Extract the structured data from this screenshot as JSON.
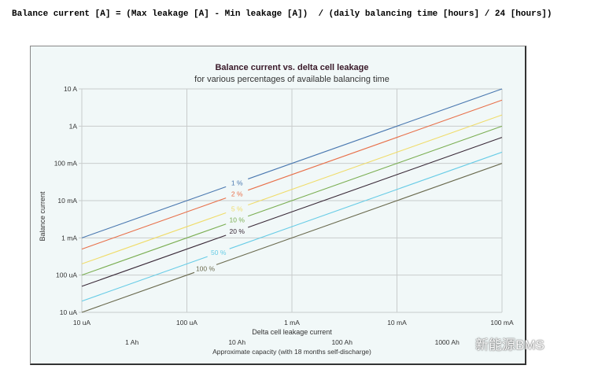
{
  "formula": "Balance current [A] = (Max leakage [A] - Min leakage [A])  / (daily balancing time [hours] / 24 [hours])",
  "watermark": "新能源BMS",
  "chart_data": {
    "type": "line",
    "title": "Balance current vs. delta cell leakage",
    "subtitle": "for various percentages of available balancing time",
    "xlabel": "Delta cell leakage current",
    "ylabel": "Balance current",
    "x2label": "Approximate capacity (with 18 months self-discharge)",
    "xscale": "log",
    "yscale": "log",
    "xlim_A": [
      1e-05,
      0.1
    ],
    "ylim_A": [
      1e-05,
      10
    ],
    "grid": true,
    "xticks": [
      {
        "v": 1e-05,
        "label": "10 uA"
      },
      {
        "v": 0.0001,
        "label": "100 uA"
      },
      {
        "v": 0.001,
        "label": "1 mA"
      },
      {
        "v": 0.01,
        "label": "10 mA"
      },
      {
        "v": 0.1,
        "label": "100 mA"
      }
    ],
    "yticks": [
      {
        "v": 10,
        "label": "10 A"
      },
      {
        "v": 1,
        "label": "1A"
      },
      {
        "v": 0.1,
        "label": "100 mA"
      },
      {
        "v": 0.01,
        "label": "10 mA"
      },
      {
        "v": 0.001,
        "label": "1 mA"
      },
      {
        "v": 0.0001,
        "label": "100 uA"
      },
      {
        "v": 1e-05,
        "label": "10 uA"
      }
    ],
    "x2ticks": [
      {
        "v": 3e-05,
        "label": "1 Ah"
      },
      {
        "v": 0.0003,
        "label": "10 Ah"
      },
      {
        "v": 0.003,
        "label": "100 Ah"
      },
      {
        "v": 0.03,
        "label": "1000 Ah"
      }
    ],
    "x": [
      1e-05,
      0.1
    ],
    "series": [
      {
        "name": "1 %",
        "values": [
          0.001,
          10
        ],
        "color": "#4a78b0",
        "label_at": 0.0003
      },
      {
        "name": "2 %",
        "values": [
          0.0005,
          5
        ],
        "color": "#e8704a",
        "label_at": 0.0003
      },
      {
        "name": "5 %",
        "values": [
          0.0002,
          2
        ],
        "color": "#f0dc6a",
        "label_at": 0.0003
      },
      {
        "name": "10 %",
        "values": [
          0.0001,
          1
        ],
        "color": "#7aae52",
        "label_at": 0.0003
      },
      {
        "name": "20 %",
        "values": [
          5e-05,
          0.5
        ],
        "color": "#3a2a38",
        "label_at": 0.0003
      },
      {
        "name": "50 %",
        "values": [
          2e-05,
          0.2
        ],
        "color": "#68cce6",
        "label_at": 0.0002
      },
      {
        "name": "100 %",
        "values": [
          1e-05,
          0.1
        ],
        "color": "#6a6a4e",
        "label_at": 0.00015
      }
    ]
  }
}
